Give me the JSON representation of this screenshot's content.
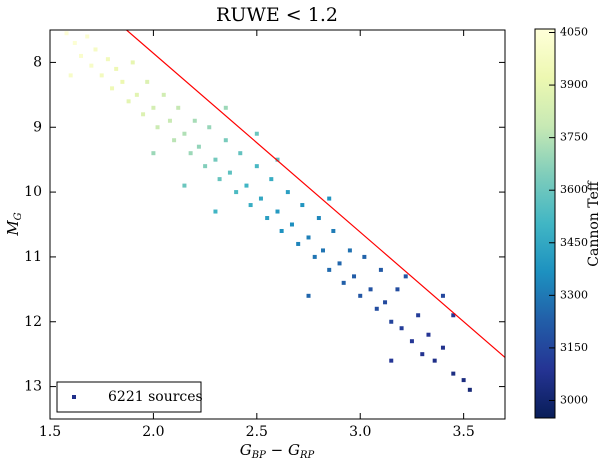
{
  "chart_data": {
    "type": "scatter",
    "title": "RUWE < 1.2",
    "xlabel": [
      "G",
      "BP",
      " − G",
      "RP"
    ],
    "ylabel": [
      "M",
      "G"
    ],
    "xlim": [
      1.5,
      3.7
    ],
    "ylim": [
      7.5,
      13.5
    ],
    "y_inverted": true,
    "xticks": [
      1.5,
      {
        "value": 2,
        "label": "2.0"
      },
      2.5,
      {
        "value": 3,
        "label": "3.0"
      },
      3.5
    ],
    "yticks": [
      8,
      9,
      10,
      11,
      12,
      13
    ],
    "legend": "lower left",
    "colorbar": {
      "label": "Cannon Teff",
      "clim": [
        2950,
        4060
      ],
      "ticks": [
        3000,
        3150,
        3300,
        3450,
        3600,
        3750,
        3900,
        4050
      ],
      "colormap": [
        "#081d58",
        "#253494",
        "#225ea8",
        "#1d91c0",
        "#41b6c4",
        "#7fcdbb",
        "#c7e9b4",
        "#edf8b1",
        "#ffffd9"
      ]
    },
    "line": {
      "x": [
        1.87,
        3.7
      ],
      "y": [
        7.5,
        12.55
      ],
      "color": "#ff0000"
    },
    "series": [
      {
        "name": "6221 sources",
        "color": "#1f2f8a",
        "x": [
          1.58,
          1.62,
          1.65,
          1.68,
          1.7,
          1.72,
          1.75,
          1.78,
          1.8,
          1.82,
          1.85,
          1.88,
          1.9,
          1.92,
          1.95,
          1.97,
          2.0,
          2.02,
          2.05,
          2.08,
          2.1,
          2.12,
          2.15,
          2.18,
          2.2,
          2.22,
          2.25,
          2.27,
          2.3,
          2.32,
          2.35,
          2.37,
          2.4,
          2.42,
          2.45,
          2.47,
          2.5,
          2.52,
          2.55,
          2.57,
          2.6,
          2.62,
          2.65,
          2.67,
          2.7,
          2.72,
          2.75,
          2.78,
          2.8,
          2.82,
          2.85,
          2.87,
          2.9,
          2.92,
          2.95,
          2.97,
          3.0,
          3.02,
          3.05,
          3.08,
          3.1,
          3.12,
          3.15,
          3.18,
          3.2,
          3.22,
          3.25,
          3.28,
          3.3,
          3.33,
          3.36,
          3.4,
          3.45,
          3.5,
          3.53,
          3.4,
          2.35,
          2.5,
          2.6,
          2.0,
          1.6,
          2.85,
          3.45,
          2.15,
          2.3,
          2.75,
          3.15
        ],
        "y": [
          7.55,
          7.7,
          7.9,
          7.6,
          8.05,
          7.8,
          8.2,
          7.95,
          8.4,
          8.1,
          8.3,
          8.6,
          8.0,
          8.5,
          8.8,
          8.3,
          8.7,
          9.0,
          8.5,
          8.9,
          9.2,
          8.7,
          9.1,
          9.4,
          8.9,
          9.3,
          9.6,
          9.0,
          9.5,
          9.8,
          9.2,
          9.7,
          10.0,
          9.4,
          9.9,
          10.2,
          9.6,
          10.1,
          10.4,
          9.8,
          10.3,
          10.6,
          10.0,
          10.5,
          10.8,
          10.2,
          10.7,
          11.0,
          10.4,
          10.9,
          11.2,
          10.6,
          11.1,
          11.4,
          10.9,
          11.3,
          11.6,
          11.0,
          11.5,
          11.8,
          11.2,
          11.7,
          12.0,
          11.5,
          12.1,
          11.3,
          12.3,
          11.9,
          12.5,
          12.2,
          12.6,
          12.4,
          12.8,
          12.9,
          13.05,
          11.6,
          8.7,
          9.1,
          9.5,
          9.4,
          8.2,
          10.1,
          11.9,
          9.9,
          10.3,
          11.6,
          12.6
        ],
        "teff": [
          4050,
          4040,
          4020,
          4030,
          4000,
          3990,
          3970,
          3960,
          3940,
          3930,
          3920,
          3890,
          3900,
          3880,
          3860,
          3860,
          3830,
          3800,
          3820,
          3790,
          3760,
          3780,
          3740,
          3700,
          3720,
          3680,
          3650,
          3690,
          3620,
          3590,
          3630,
          3570,
          3530,
          3580,
          3500,
          3470,
          3520,
          3450,
          3420,
          3470,
          3400,
          3370,
          3420,
          3360,
          3330,
          3380,
          3320,
          3290,
          3340,
          3290,
          3260,
          3310,
          3250,
          3230,
          3280,
          3220,
          3200,
          3240,
          3190,
          3170,
          3210,
          3160,
          3140,
          3170,
          3120,
          3200,
          3100,
          3120,
          3080,
          3090,
          3060,
          3070,
          3050,
          3040,
          3020,
          3150,
          3700,
          3600,
          3550,
          3700,
          4000,
          3380,
          3100,
          3600,
          3500,
          3250,
          3100
        ]
      }
    ]
  }
}
